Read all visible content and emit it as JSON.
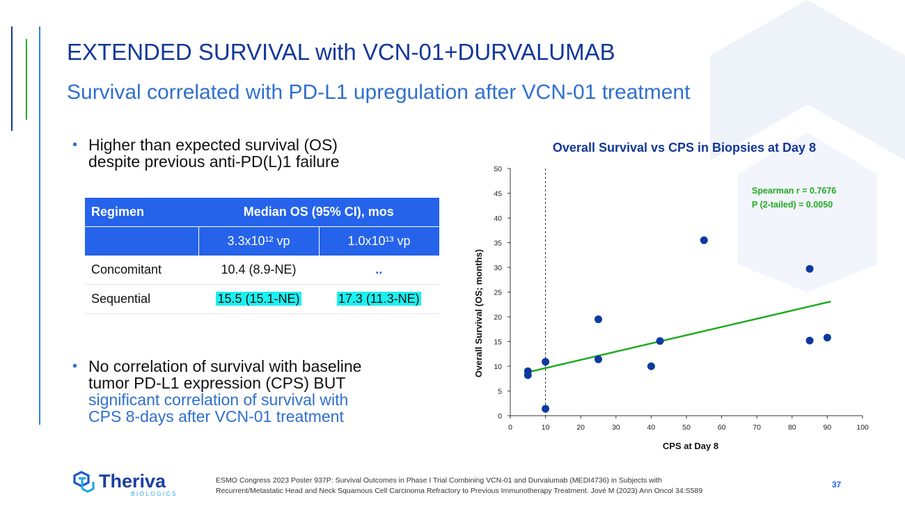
{
  "slide": {
    "title": "EXTENDED SURVIVAL with VCN-01+DURVALUMAB",
    "subtitle": "Survival correlated with PD-L1 upregulation after VCN-01 treatment",
    "bullet1_line1": "Higher than expected survival (OS)",
    "bullet1_line2": "despite previous anti-PD(L)1 failure",
    "bullet2_line1": "No correlation of survival with baseline",
    "bullet2_line2": "tumor PD-L1 expression (CPS) BUT",
    "bullet2_line3": "significant correlation of survival with",
    "bullet2_line4": "CPS 8-days after VCN-01 treatment",
    "page_number": "37",
    "footer_line1": "ESMO Congress 2023 Poster 937P: Survival Outcomes in Phase I Trial Combining VCN-01 and Durvalumab (MEDI4736) in Subjects with",
    "footer_line2": "Recurrent/Metastatic Head and Neck Squamous Cell Carcinoma Refractory to Previous Immunotherapy Treatment. Jové M (2023) Ann Oncol 34:S589",
    "logo_name": "Theriva",
    "logo_sub": "BIOLOGICS"
  },
  "table": {
    "h_regimen": "Regimen",
    "h_median": "Median OS (95% CI), mos",
    "dose1": "3.3x10¹²  vp",
    "dose2": "1.0x10¹³ vp",
    "r1_label": "Concomitant",
    "r1_v1": "10.4 (8.9-NE)",
    "r1_v2": "..",
    "r2_label": "Sequential",
    "r2_v1": "15.5 (15.1-NE)",
    "r2_v2": "17.3 (11.3-NE)"
  },
  "chart_data": {
    "type": "scatter",
    "title": "Overall Survival vs CPS in Biopsies at Day 8",
    "xlabel": "CPS at Day 8",
    "ylabel": "Overall Survival (OS; months)",
    "xlim": [
      0,
      100
    ],
    "ylim": [
      0,
      50
    ],
    "xticks": [
      0,
      10,
      20,
      30,
      40,
      50,
      60,
      70,
      80,
      90,
      100
    ],
    "yticks": [
      0,
      5,
      10,
      15,
      20,
      25,
      30,
      35,
      40,
      45,
      50
    ],
    "points": [
      {
        "x": 5,
        "y": 9.0
      },
      {
        "x": 5,
        "y": 8.2
      },
      {
        "x": 10,
        "y": 10.9
      },
      {
        "x": 10,
        "y": 1.4
      },
      {
        "x": 25,
        "y": 19.5
      },
      {
        "x": 25,
        "y": 11.4
      },
      {
        "x": 40,
        "y": 10.0
      },
      {
        "x": 42.5,
        "y": 15.1
      },
      {
        "x": 55,
        "y": 35.5
      },
      {
        "x": 85,
        "y": 29.7
      },
      {
        "x": 85,
        "y": 15.2
      },
      {
        "x": 90,
        "y": 15.8
      }
    ],
    "fit_line": {
      "x": [
        5,
        91
      ],
      "y": [
        8.8,
        23.1
      ]
    },
    "ref_line_x": 10,
    "annotation_line1": "Spearman r = 0.7676",
    "annotation_line2": "P (2-tailed) = 0.0050",
    "colors": {
      "points": "#0d3aa1",
      "fit": "#22aa22",
      "title": "#12379a",
      "annotation": "#22aa22"
    }
  }
}
